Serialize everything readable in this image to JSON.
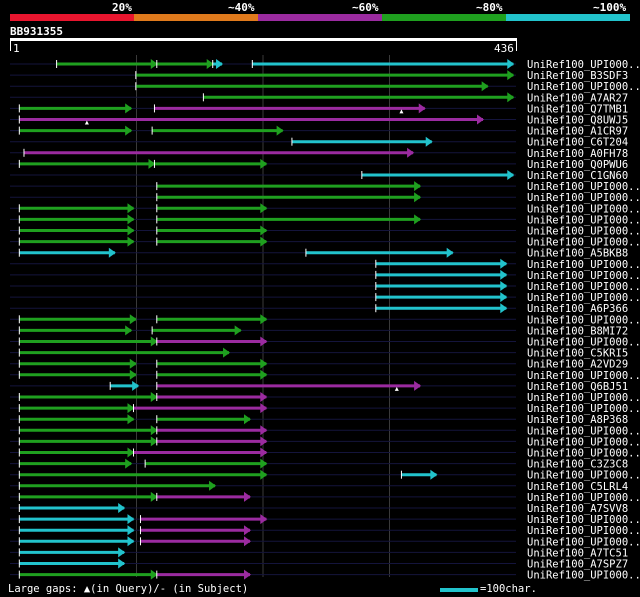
{
  "chart_data": {
    "type": "alignment-overview",
    "query_id": "BB931355",
    "query_start": 1,
    "query_end": 436,
    "legend": [
      {
        "label": "20%",
        "color": "#e8152e"
      },
      {
        "label": "~40%",
        "color": "#e07a1c"
      },
      {
        "label": "~60%",
        "color": "#9b2ba0"
      },
      {
        "label": "~80%",
        "color": "#1fa01f"
      },
      {
        "label": "~100%",
        "color": "#22c3cc"
      }
    ],
    "hits": [
      {
        "label": "UniRef100_UPI000..",
        "segments": [
          [
            20,
            63,
            "g"
          ],
          [
            63,
            87,
            "g"
          ],
          [
            87,
            91,
            "c"
          ],
          [
            104,
            216,
            "c"
          ]
        ]
      },
      {
        "label": "UniRef100_B3SDF3",
        "segments": [
          [
            54,
            216,
            "g"
          ]
        ]
      },
      {
        "label": "UniRef100_UPI000..",
        "segments": [
          [
            54,
            205,
            "g"
          ]
        ]
      },
      {
        "label": "UniRef100_A7AR27",
        "segments": [
          [
            83,
            216,
            "g"
          ]
        ]
      },
      {
        "label": "UniRef100_Q7TMB1",
        "segments": [
          [
            4,
            52,
            "g"
          ],
          [
            62,
            178,
            "p"
          ]
        ],
        "query_gaps": [
          168
        ]
      },
      {
        "label": "UniRef100_Q8UWJ5",
        "segments": [
          [
            4,
            203,
            "p"
          ]
        ],
        "query_gaps": [
          33
        ]
      },
      {
        "label": "UniRef100_A1CR97",
        "segments": [
          [
            4,
            52,
            "g"
          ],
          [
            61,
            117,
            "g"
          ]
        ]
      },
      {
        "label": "UniRef100_C6T204",
        "segments": [
          [
            121,
            181,
            "c"
          ]
        ]
      },
      {
        "label": "UniRef100_A0FH78",
        "segments": [
          [
            6,
            173,
            "p"
          ]
        ]
      },
      {
        "label": "UniRef100_Q0PWU6",
        "segments": [
          [
            4,
            62,
            "g"
          ],
          [
            62,
            110,
            "g"
          ]
        ]
      },
      {
        "label": "UniRef100_C1GN60",
        "segments": [
          [
            151,
            216,
            "c"
          ]
        ]
      },
      {
        "label": "UniRef100_UPI000..",
        "segments": [
          [
            63,
            176,
            "g"
          ]
        ]
      },
      {
        "label": "UniRef100_UPI000..",
        "segments": [
          [
            63,
            176,
            "g"
          ]
        ]
      },
      {
        "label": "UniRef100_UPI000..",
        "segments": [
          [
            4,
            53,
            "g"
          ],
          [
            63,
            110,
            "g"
          ]
        ]
      },
      {
        "label": "UniRef100_UPI000..",
        "segments": [
          [
            4,
            53,
            "g"
          ],
          [
            63,
            176,
            "g"
          ]
        ]
      },
      {
        "label": "UniRef100_UPI000..",
        "segments": [
          [
            4,
            53,
            "g"
          ],
          [
            63,
            110,
            "g"
          ]
        ]
      },
      {
        "label": "UniRef100_UPI000..",
        "segments": [
          [
            4,
            53,
            "g"
          ],
          [
            63,
            110,
            "g"
          ]
        ]
      },
      {
        "label": "UniRef100_A5BKB8",
        "segments": [
          [
            4,
            45,
            "c"
          ],
          [
            127,
            190,
            "c"
          ]
        ]
      },
      {
        "label": "UniRef100_UPI000..",
        "segments": [
          [
            157,
            213,
            "c"
          ]
        ]
      },
      {
        "label": "UniRef100_UPI000..",
        "segments": [
          [
            157,
            213,
            "c"
          ]
        ]
      },
      {
        "label": "UniRef100_UPI000..",
        "segments": [
          [
            157,
            213,
            "c"
          ]
        ]
      },
      {
        "label": "UniRef100_UPI000..",
        "segments": [
          [
            157,
            213,
            "c"
          ]
        ]
      },
      {
        "label": "UniRef100_A6P366",
        "segments": [
          [
            157,
            213,
            "c"
          ]
        ]
      },
      {
        "label": "UniRef100_UPI000..",
        "segments": [
          [
            4,
            54,
            "g"
          ],
          [
            63,
            110,
            "g"
          ]
        ]
      },
      {
        "label": "UniRef100_B8MI72",
        "segments": [
          [
            4,
            52,
            "g"
          ],
          [
            61,
            99,
            "g"
          ]
        ]
      },
      {
        "label": "UniRef100_UPI000..",
        "segments": [
          [
            4,
            63,
            "g"
          ],
          [
            63,
            110,
            "p"
          ]
        ]
      },
      {
        "label": "UniRef100_C5KRI5",
        "segments": [
          [
            4,
            94,
            "g"
          ]
        ]
      },
      {
        "label": "UniRef100_A2VD29",
        "segments": [
          [
            4,
            54,
            "g"
          ],
          [
            63,
            110,
            "g"
          ]
        ]
      },
      {
        "label": "UniRef100_UPI000..",
        "segments": [
          [
            4,
            54,
            "g"
          ],
          [
            63,
            110,
            "g"
          ]
        ]
      },
      {
        "label": "UniRef100_Q6BJ51",
        "segments": [
          [
            43,
            55,
            "c"
          ],
          [
            63,
            176,
            "p"
          ]
        ],
        "query_gaps": [
          166
        ]
      },
      {
        "label": "UniRef100_UPI000..",
        "segments": [
          [
            4,
            63,
            "g"
          ],
          [
            63,
            110,
            "p"
          ]
        ]
      },
      {
        "label": "UniRef100_UPI000..",
        "segments": [
          [
            4,
            53,
            "g"
          ],
          [
            53,
            110,
            "p"
          ]
        ]
      },
      {
        "label": "UniRef100_A8P368",
        "segments": [
          [
            4,
            53,
            "g"
          ],
          [
            63,
            103,
            "g"
          ]
        ]
      },
      {
        "label": "UniRef100_UPI000..",
        "segments": [
          [
            4,
            63,
            "g"
          ],
          [
            63,
            110,
            "p"
          ]
        ]
      },
      {
        "label": "UniRef100_UPI000..",
        "segments": [
          [
            4,
            63,
            "g"
          ],
          [
            63,
            110,
            "p"
          ]
        ]
      },
      {
        "label": "UniRef100_UPI000..",
        "segments": [
          [
            4,
            53,
            "g"
          ],
          [
            53,
            110,
            "p"
          ]
        ]
      },
      {
        "label": "UniRef100_C3Z3C8",
        "segments": [
          [
            4,
            52,
            "g"
          ],
          [
            58,
            110,
            "g"
          ]
        ]
      },
      {
        "label": "UniRef100_UPI000..",
        "segments": [
          [
            4,
            110,
            "g"
          ],
          [
            168,
            183,
            "c"
          ]
        ]
      },
      {
        "label": "UniRef100_C5LRL4",
        "segments": [
          [
            4,
            88,
            "g"
          ]
        ]
      },
      {
        "label": "UniRef100_UPI000..",
        "segments": [
          [
            4,
            63,
            "g"
          ],
          [
            63,
            103,
            "p"
          ]
        ]
      },
      {
        "label": "UniRef100_A7SVV8",
        "segments": [
          [
            4,
            49,
            "c"
          ]
        ]
      },
      {
        "label": "UniRef100_UPI000..",
        "segments": [
          [
            4,
            53,
            "c"
          ],
          [
            56,
            110,
            "p"
          ]
        ]
      },
      {
        "label": "UniRef100_UPI000..",
        "segments": [
          [
            4,
            53,
            "c"
          ],
          [
            56,
            103,
            "p"
          ]
        ]
      },
      {
        "label": "UniRef100_UPI000..",
        "segments": [
          [
            4,
            53,
            "c"
          ],
          [
            56,
            103,
            "p"
          ]
        ]
      },
      {
        "label": "UniRef100_A7TC51",
        "segments": [
          [
            4,
            49,
            "c"
          ]
        ]
      },
      {
        "label": "UniRef100_A7SPZ7",
        "segments": [
          [
            4,
            49,
            "c"
          ]
        ]
      },
      {
        "label": "UniRef100_UPI000..",
        "segments": [
          [
            4,
            63,
            "g"
          ],
          [
            63,
            103,
            "p"
          ]
        ]
      }
    ]
  },
  "footer": {
    "gaps_text": "Large gaps: ▲(in Query)/- (in Subject)",
    "scale_text": "=100char."
  }
}
